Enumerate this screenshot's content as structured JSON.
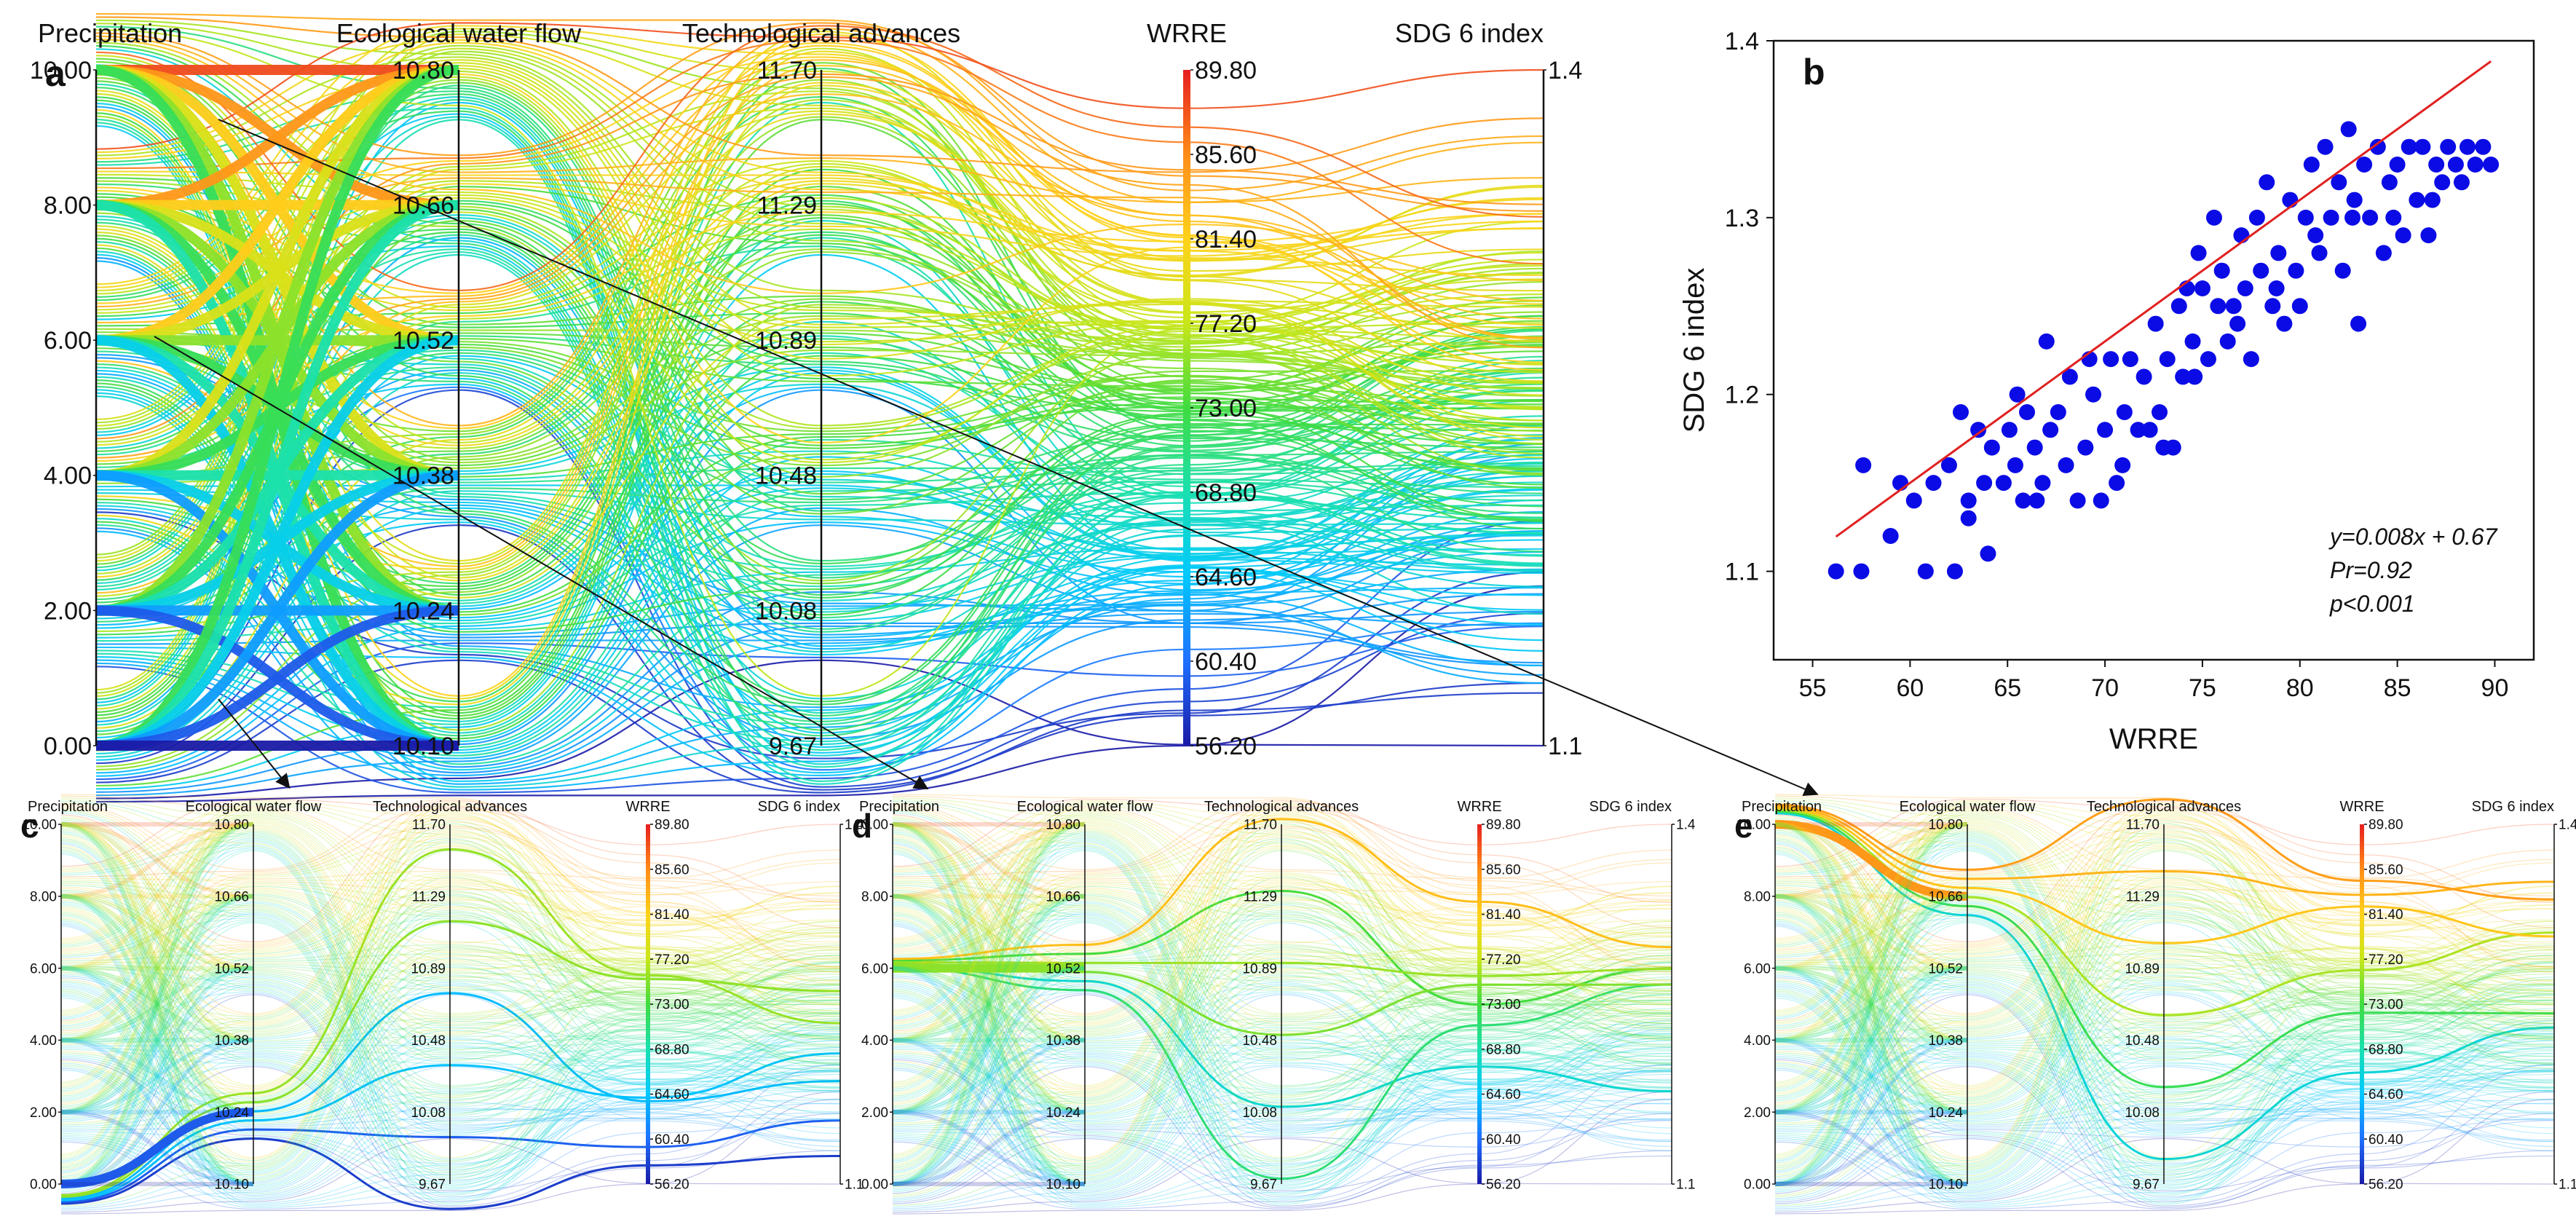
{
  "chart_data": [
    {
      "panel": "a",
      "type": "parallel-coordinates",
      "axes": [
        {
          "name": "Precipitation",
          "ticks": [
            "10.00",
            "8.00",
            "6.00",
            "4.00",
            "2.00",
            "0.00"
          ]
        },
        {
          "name": "Ecological water flow",
          "ticks": [
            "10.80",
            "10.66",
            "10.52",
            "10.38",
            "10.24",
            "10.10"
          ]
        },
        {
          "name": "Technological advances",
          "ticks": [
            "11.70",
            "11.29",
            "10.89",
            "10.48",
            "10.08",
            "9.67"
          ]
        },
        {
          "name": "WRRE",
          "ticks": [
            "89.80",
            "85.60",
            "81.40",
            "77.20",
            "73.00",
            "68.80",
            "64.60",
            "60.40",
            "56.20"
          ],
          "range": [
            56.2,
            89.8
          ]
        },
        {
          "name": "SDG 6 index",
          "ticks": [
            "1.4",
            "1.1"
          ],
          "range": [
            1.1,
            1.4
          ]
        }
      ],
      "color_by": "WRRE",
      "colormap": [
        "#1a1aa6",
        "#1f6fff",
        "#00c8ff",
        "#19e0b0",
        "#3fdc3f",
        "#c8e619",
        "#ffd21a",
        "#ff8c19",
        "#e61e1e"
      ]
    },
    {
      "panel": "b",
      "type": "scatter",
      "xlabel": "WRRE",
      "ylabel": "SDG 6 index",
      "xlim": [
        53,
        92
      ],
      "ylim": [
        1.05,
        1.4
      ],
      "xticks": [
        "55",
        "60",
        "65",
        "70",
        "75",
        "80",
        "85",
        "90"
      ],
      "yticks": [
        "1.1",
        "1.2",
        "1.3",
        "1.4"
      ],
      "point_color": "#0b0be6",
      "fit_color": "#e02020",
      "fit": {
        "slope": 0.008,
        "intercept": 0.67,
        "x_range": [
          56.2,
          89.8
        ]
      },
      "annotations": [
        "y=0.008x + 0.67",
        "Pr=0.92",
        "p<0.001"
      ],
      "points": [
        [
          56.2,
          1.1
        ],
        [
          57.5,
          1.1
        ],
        [
          57.6,
          1.16
        ],
        [
          59.0,
          1.12
        ],
        [
          59.5,
          1.15
        ],
        [
          60.2,
          1.14
        ],
        [
          60.8,
          1.1
        ],
        [
          61.2,
          1.15
        ],
        [
          62.0,
          1.16
        ],
        [
          62.3,
          1.1
        ],
        [
          62.6,
          1.19
        ],
        [
          63.0,
          1.14
        ],
        [
          63.5,
          1.18
        ],
        [
          63.8,
          1.15
        ],
        [
          64.0,
          1.11
        ],
        [
          64.2,
          1.17
        ],
        [
          64.8,
          1.15
        ],
        [
          65.1,
          1.18
        ],
        [
          65.4,
          1.16
        ],
        [
          65.8,
          1.14
        ],
        [
          66.0,
          1.19
        ],
        [
          66.4,
          1.17
        ],
        [
          66.8,
          1.15
        ],
        [
          67.0,
          1.23
        ],
        [
          67.2,
          1.18
        ],
        [
          67.6,
          1.19
        ],
        [
          68.0,
          1.16
        ],
        [
          68.2,
          1.21
        ],
        [
          68.6,
          1.14
        ],
        [
          69.0,
          1.17
        ],
        [
          69.4,
          1.2
        ],
        [
          69.8,
          1.14
        ],
        [
          70.0,
          1.18
        ],
        [
          70.3,
          1.22
        ],
        [
          70.6,
          1.15
        ],
        [
          71.0,
          1.19
        ],
        [
          71.3,
          1.22
        ],
        [
          71.7,
          1.18
        ],
        [
          72.0,
          1.21
        ],
        [
          72.3,
          1.18
        ],
        [
          72.6,
          1.24
        ],
        [
          73.0,
          1.17
        ],
        [
          73.2,
          1.22
        ],
        [
          73.5,
          1.17
        ],
        [
          73.8,
          1.25
        ],
        [
          74.0,
          1.21
        ],
        [
          74.2,
          1.26
        ],
        [
          74.5,
          1.23
        ],
        [
          74.8,
          1.28
        ],
        [
          75.0,
          1.26
        ],
        [
          75.3,
          1.22
        ],
        [
          75.6,
          1.3
        ],
        [
          75.8,
          1.25
        ],
        [
          76.0,
          1.27
        ],
        [
          76.3,
          1.23
        ],
        [
          76.6,
          1.25
        ],
        [
          77.0,
          1.29
        ],
        [
          77.2,
          1.26
        ],
        [
          77.5,
          1.22
        ],
        [
          77.8,
          1.3
        ],
        [
          78.0,
          1.27
        ],
        [
          78.3,
          1.32
        ],
        [
          78.6,
          1.25
        ],
        [
          78.9,
          1.28
        ],
        [
          79.2,
          1.24
        ],
        [
          79.5,
          1.31
        ],
        [
          79.8,
          1.27
        ],
        [
          80.0,
          1.25
        ],
        [
          80.3,
          1.3
        ],
        [
          80.6,
          1.33
        ],
        [
          81.0,
          1.28
        ],
        [
          81.3,
          1.34
        ],
        [
          81.6,
          1.3
        ],
        [
          82.0,
          1.32
        ],
        [
          82.2,
          1.27
        ],
        [
          82.5,
          1.35
        ],
        [
          82.8,
          1.31
        ],
        [
          83.0,
          1.24
        ],
        [
          83.3,
          1.33
        ],
        [
          83.6,
          1.3
        ],
        [
          84.0,
          1.34
        ],
        [
          84.3,
          1.28
        ],
        [
          84.6,
          1.32
        ],
        [
          85.0,
          1.33
        ],
        [
          85.3,
          1.29
        ],
        [
          85.6,
          1.34
        ],
        [
          86.0,
          1.31
        ],
        [
          86.3,
          1.34
        ],
        [
          86.6,
          1.29
        ],
        [
          87.0,
          1.33
        ],
        [
          87.3,
          1.32
        ],
        [
          87.6,
          1.34
        ],
        [
          88.0,
          1.33
        ],
        [
          88.3,
          1.32
        ],
        [
          88.6,
          1.34
        ],
        [
          89.0,
          1.33
        ],
        [
          89.4,
          1.34
        ],
        [
          89.8,
          1.33
        ],
        [
          63.0,
          1.13
        ],
        [
          65.5,
          1.2
        ],
        [
          66.5,
          1.14
        ],
        [
          69.2,
          1.22
        ],
        [
          70.9,
          1.16
        ],
        [
          72.8,
          1.19
        ],
        [
          74.6,
          1.21
        ],
        [
          76.8,
          1.24
        ],
        [
          78.8,
          1.26
        ],
        [
          80.8,
          1.29
        ],
        [
          82.7,
          1.3
        ],
        [
          84.8,
          1.3
        ],
        [
          86.8,
          1.31
        ]
      ]
    },
    {
      "panel": "c",
      "type": "parallel-coordinates",
      "highlight": {
        "Precipitation": "0.00",
        "Ecological water flow": "10.24"
      }
    },
    {
      "panel": "d",
      "type": "parallel-coordinates",
      "highlight": {
        "Precipitation": "6.00",
        "Ecological water flow": "10.52"
      }
    },
    {
      "panel": "e",
      "type": "parallel-coordinates",
      "highlight": {
        "Precipitation": "10.00",
        "Ecological water flow": "10.66"
      }
    }
  ],
  "panels": {
    "a": "a",
    "b": "b",
    "c": "c",
    "d": "d",
    "e": "e"
  }
}
